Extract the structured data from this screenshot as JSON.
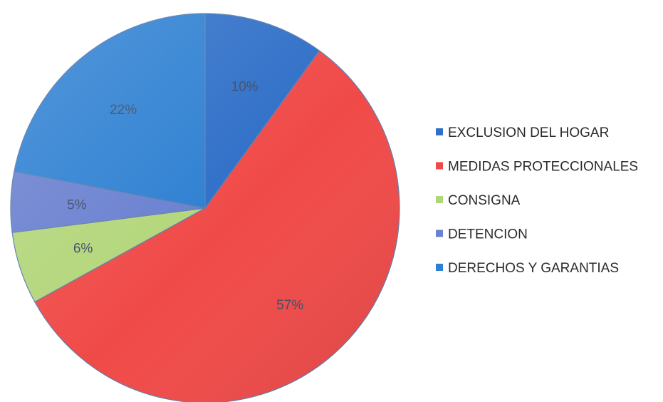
{
  "chart_data": {
    "type": "pie",
    "title": "",
    "categories": [
      "EXCLUSION DEL HOGAR",
      "MEDIDAS PROTECCIONALES",
      "CONSIGNA",
      "DETENCION",
      "DERECHOS Y GARANTIAS"
    ],
    "values": [
      10,
      57,
      6,
      5,
      22
    ],
    "value_labels": [
      "10%",
      "57%",
      "6%",
      "5%",
      "22%"
    ],
    "colors": [
      "#2f6fc8",
      "#f04a48",
      "#b3d67a",
      "#6a80d0",
      "#2e80d2"
    ],
    "legend_position": "right",
    "start": "12 o'clock",
    "direction": "clockwise"
  }
}
